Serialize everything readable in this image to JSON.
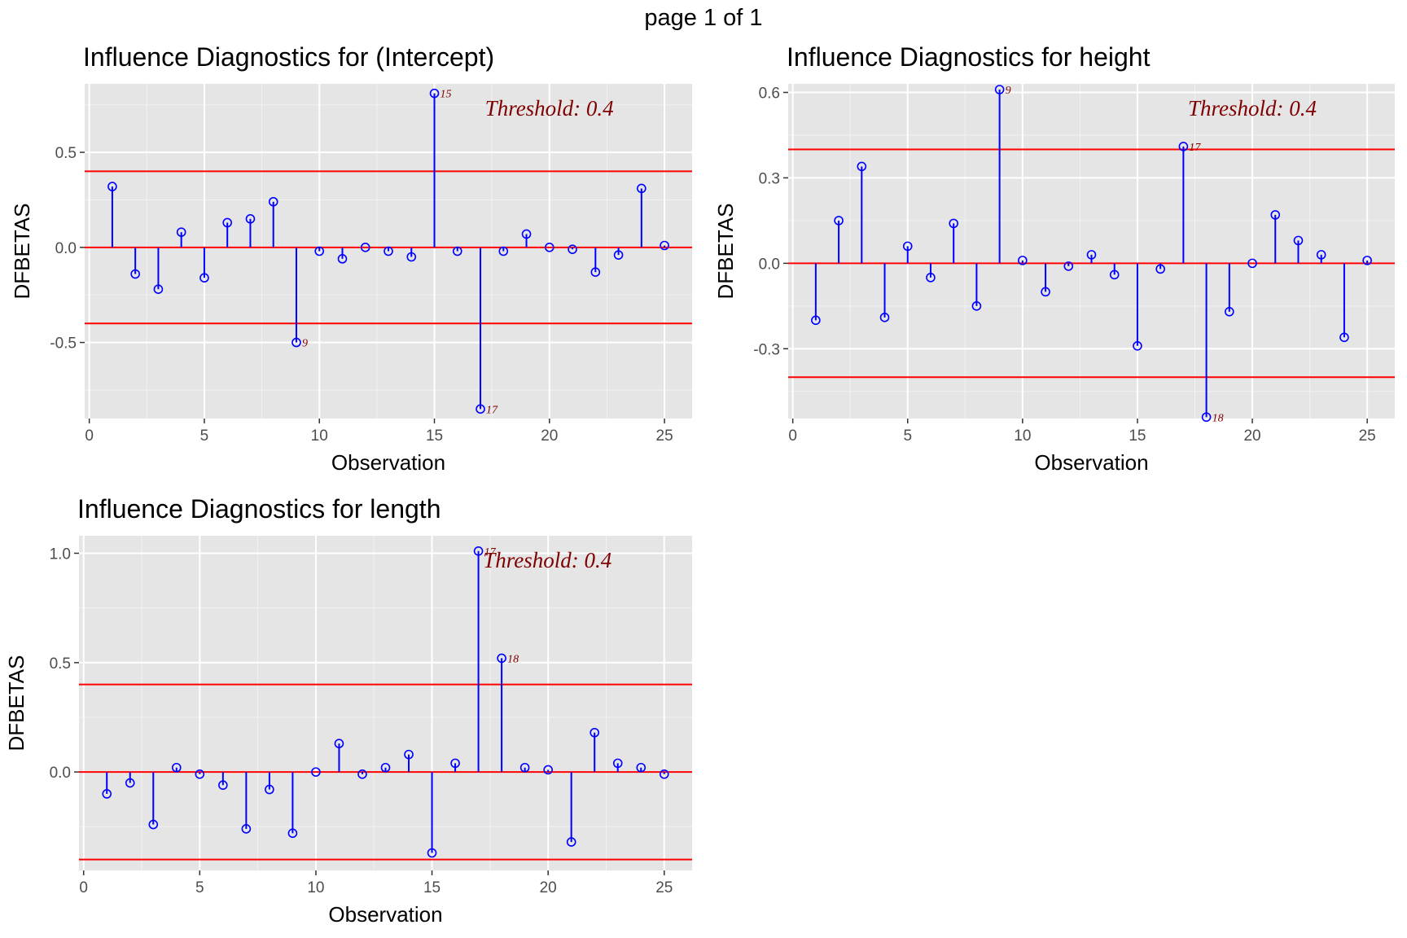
{
  "page": {
    "title": "page 1 of 1"
  },
  "chart_data": [
    {
      "type": "lollipop",
      "title": "Influence Diagnostics for (Intercept)",
      "xlabel": "Observation",
      "ylabel": "DFBETAS",
      "xlim": [
        -0.2,
        26.2
      ],
      "ylim": [
        -0.9,
        0.86
      ],
      "xticks": [
        0,
        5,
        10,
        15,
        20,
        25
      ],
      "yticks": [
        -0.5,
        0.0,
        0.5
      ],
      "ytick_labels": [
        "-0.5",
        "0.0",
        "0.5"
      ],
      "threshold": 0.4,
      "threshold_label": "Threshold: 0.4",
      "x": [
        1,
        2,
        3,
        4,
        5,
        6,
        7,
        8,
        9,
        10,
        11,
        12,
        13,
        14,
        15,
        16,
        17,
        18,
        19,
        20,
        21,
        22,
        23,
        24,
        25
      ],
      "values": [
        0.32,
        -0.14,
        -0.22,
        0.08,
        -0.16,
        0.13,
        0.15,
        0.24,
        -0.5,
        -0.02,
        -0.06,
        0.0,
        -0.02,
        -0.05,
        0.81,
        -0.02,
        -0.85,
        -0.02,
        0.07,
        0.0,
        -0.01,
        -0.13,
        -0.04,
        0.31,
        0.01
      ],
      "labeled_points": [
        {
          "x": 9,
          "label": "9"
        },
        {
          "x": 15,
          "label": "15"
        },
        {
          "x": 17,
          "label": "17"
        }
      ]
    },
    {
      "type": "lollipop",
      "title": "Influence Diagnostics for height",
      "xlabel": "Observation",
      "ylabel": "DFBETAS",
      "xlim": [
        -0.2,
        26.2
      ],
      "ylim": [
        -0.545,
        0.63
      ],
      "xticks": [
        0,
        5,
        10,
        15,
        20,
        25
      ],
      "yticks": [
        -0.3,
        0.0,
        0.3,
        0.6
      ],
      "ytick_labels": [
        "-0.3",
        "0.0",
        "0.3",
        "0.6"
      ],
      "threshold": 0.4,
      "threshold_label": "Threshold: 0.4",
      "x": [
        1,
        2,
        3,
        4,
        5,
        6,
        7,
        8,
        9,
        10,
        11,
        12,
        13,
        14,
        15,
        16,
        17,
        18,
        19,
        20,
        21,
        22,
        23,
        24,
        25
      ],
      "values": [
        -0.2,
        0.15,
        0.34,
        -0.19,
        0.06,
        -0.05,
        0.14,
        -0.15,
        0.61,
        0.01,
        -0.1,
        -0.01,
        0.03,
        -0.04,
        -0.29,
        -0.02,
        0.41,
        -0.54,
        -0.17,
        0.0,
        0.17,
        0.08,
        0.03,
        -0.26,
        0.01
      ],
      "labeled_points": [
        {
          "x": 9,
          "label": "9"
        },
        {
          "x": 17,
          "label": "17"
        },
        {
          "x": 18,
          "label": "18"
        }
      ]
    },
    {
      "type": "lollipop",
      "title": "Influence Diagnostics for length",
      "xlabel": "Observation",
      "ylabel": "DFBETAS",
      "xlim": [
        -0.2,
        26.2
      ],
      "ylim": [
        -0.45,
        1.08
      ],
      "xticks": [
        0,
        5,
        10,
        15,
        20,
        25
      ],
      "yticks": [
        0.0,
        0.5,
        1.0
      ],
      "ytick_labels": [
        "0.0",
        "0.5",
        "1.0"
      ],
      "threshold": 0.4,
      "threshold_label": "Threshold: 0.4",
      "x": [
        1,
        2,
        3,
        4,
        5,
        6,
        7,
        8,
        9,
        10,
        11,
        12,
        13,
        14,
        15,
        16,
        17,
        18,
        19,
        20,
        21,
        22,
        23,
        24,
        25
      ],
      "values": [
        -0.1,
        -0.05,
        -0.24,
        0.02,
        -0.01,
        -0.06,
        -0.26,
        -0.08,
        -0.28,
        0.0,
        0.13,
        -0.01,
        0.02,
        0.08,
        -0.37,
        0.04,
        1.01,
        0.52,
        0.02,
        0.01,
        -0.32,
        0.18,
        0.04,
        0.02,
        -0.01
      ],
      "labeled_points": [
        {
          "x": 17,
          "label": "17"
        },
        {
          "x": 18,
          "label": "18"
        }
      ]
    }
  ]
}
